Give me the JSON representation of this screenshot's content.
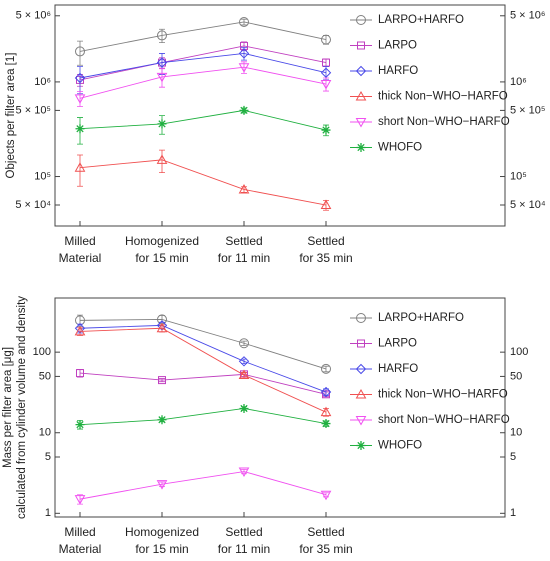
{
  "chart_data": [
    {
      "type": "line",
      "ylabel": "Objects per filter area [1]",
      "log_y": true,
      "categories": [
        "Milled\nMaterial",
        "Homogenized\nfor 15 min",
        "Settled\nfor 11 min",
        "Settled\nfor 35 min"
      ],
      "ylim": [
        30000,
        6500000
      ],
      "yticks": [
        {
          "value": 50000,
          "label": "5 × 10⁴"
        },
        {
          "value": 100000,
          "label": "10⁵"
        },
        {
          "value": 500000,
          "label": "5 × 10⁵"
        },
        {
          "value": 1000000,
          "label": "10⁶"
        },
        {
          "value": 5000000,
          "label": "5 × 10⁶"
        }
      ],
      "series": [
        {
          "name": "LARPO+HARFO",
          "color": "#808080",
          "marker": "circle",
          "values": [
            2100000,
            3100000,
            4300000,
            2800000
          ],
          "errors": [
            600000,
            500000,
            300000,
            300000
          ]
        },
        {
          "name": "LARPO",
          "color": "#c040c0",
          "marker": "square",
          "values": [
            1050000,
            1600000,
            2400000,
            1600000
          ],
          "errors": [
            150000,
            200000,
            250000,
            150000
          ]
        },
        {
          "name": "HARFO",
          "color": "#4a4ae8",
          "marker": "diamond",
          "values": [
            1100000,
            1600000,
            2000000,
            1250000
          ],
          "errors": [
            350000,
            400000,
            300000,
            200000
          ]
        },
        {
          "name": "thick Non−WHO−HARFO",
          "color": "#f05050",
          "marker": "triangle-up",
          "values": [
            124000,
            150000,
            73000,
            50000
          ],
          "errors": [
            45000,
            40000,
            5000,
            6000
          ]
        },
        {
          "name": "short Non−WHO−HARFO",
          "color": "#f050f0",
          "marker": "triangle-down",
          "values": [
            670000,
            1130000,
            1430000,
            950000
          ],
          "errors": [
            120000,
            250000,
            200000,
            150000
          ]
        },
        {
          "name": "WHOFO",
          "color": "#20b040",
          "marker": "asterisk",
          "values": [
            320000,
            360000,
            500000,
            310000
          ],
          "errors": [
            100000,
            80000,
            30000,
            40000
          ]
        }
      ]
    },
    {
      "type": "line",
      "ylabel": [
        "Mass per filter area [μg]",
        "calculated from cylinder volume and density"
      ],
      "log_y": true,
      "categories": [
        "Milled\nMaterial",
        "Homogenized\nfor 15 min",
        "Settled\nfor 11 min",
        "Settled\nfor 35 min"
      ],
      "ylim": [
        0.9,
        470
      ],
      "yticks": [
        1,
        5,
        10,
        50,
        100
      ],
      "series": [
        {
          "name": "LARPO+HARFO",
          "color": "#808080",
          "marker": "circle",
          "values": [
            248,
            255,
            129,
            62
          ],
          "errors": [
            40,
            30,
            8,
            5
          ]
        },
        {
          "name": "LARPO",
          "color": "#c040c0",
          "marker": "square",
          "values": [
            55,
            45,
            53,
            30
          ],
          "errors": [
            6,
            2,
            3,
            2
          ]
        },
        {
          "name": "HARFO",
          "color": "#4a4ae8",
          "marker": "diamond",
          "values": [
            198,
            215,
            77,
            32
          ],
          "errors": [
            25,
            20,
            5,
            3
          ]
        },
        {
          "name": "thick Non−WHO−HARFO",
          "color": "#f05050",
          "marker": "triangle-up",
          "values": [
            181,
            198,
            52,
            18
          ],
          "errors": [
            20,
            20,
            4,
            2
          ]
        },
        {
          "name": "short Non−WHO−HARFO",
          "color": "#f050f0",
          "marker": "triangle-down",
          "values": [
            1.5,
            2.3,
            3.3,
            1.7
          ],
          "errors": [
            0.2,
            0.15,
            0.2,
            0.1
          ]
        },
        {
          "name": "WHOFO",
          "color": "#20b040",
          "marker": "asterisk",
          "values": [
            12.6,
            14.5,
            20,
            13
          ],
          "errors": [
            1.5,
            0.8,
            1,
            1
          ]
        }
      ]
    }
  ]
}
